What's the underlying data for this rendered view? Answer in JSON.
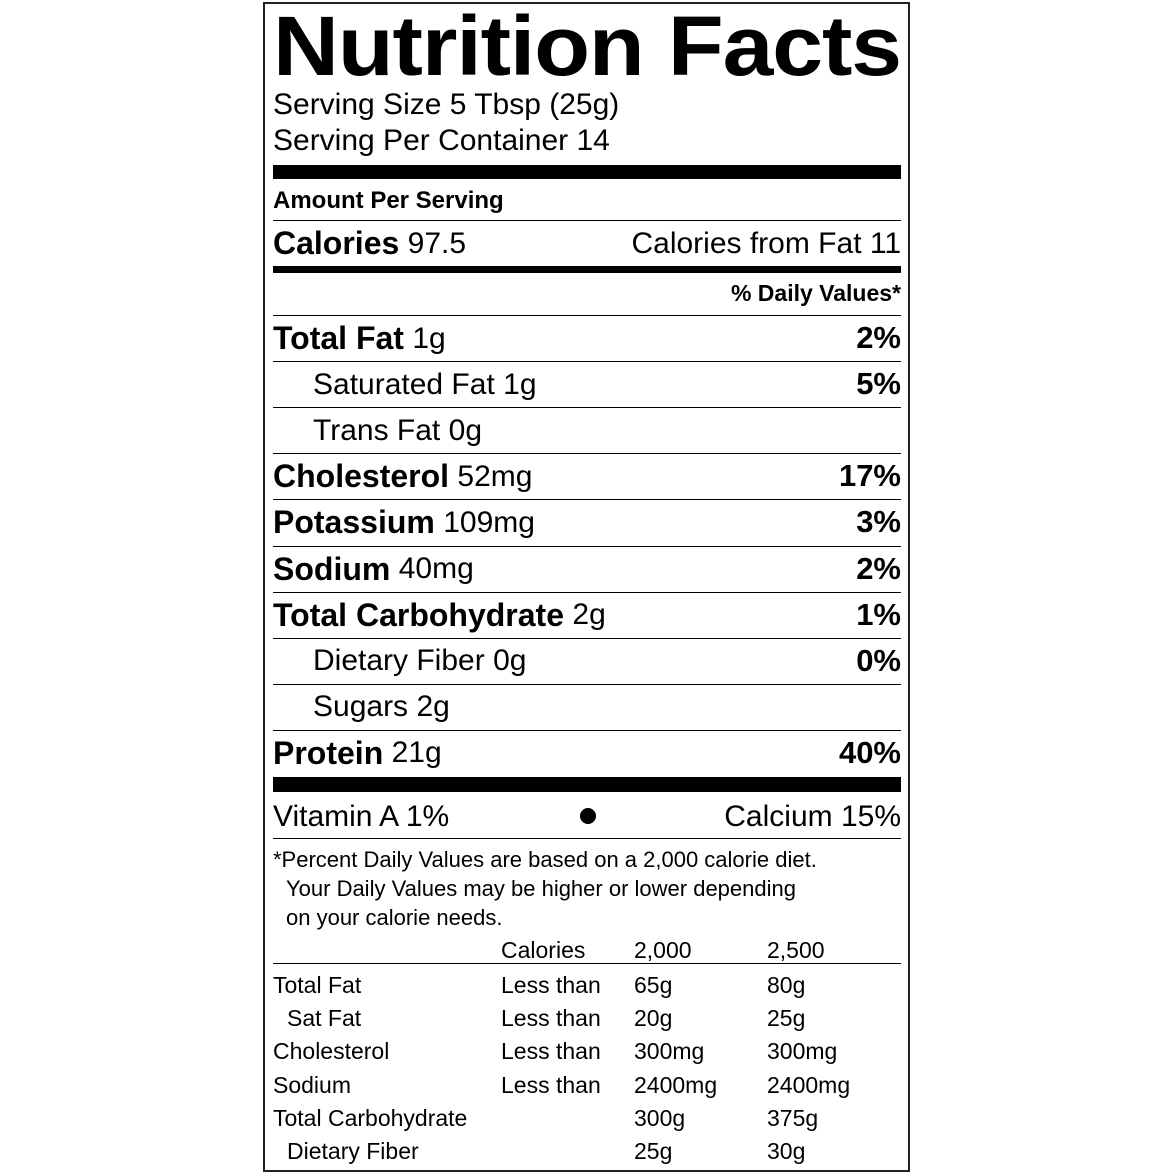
{
  "label": {
    "title": "Nutrition Facts",
    "serving_size": "Serving Size 5 Tbsp (25g)",
    "servings_per_container": "Serving Per Container 14",
    "amount_header": "Amount Per Serving",
    "calories": {
      "label": "Calories",
      "value": "97.5",
      "from_fat": "Calories from Fat 11"
    },
    "dv_header": "% Daily Values*",
    "nutrients": [
      {
        "name": "Total Fat",
        "amount": "1g",
        "dv": "2%",
        "sub": [
          {
            "name": "Saturated Fat",
            "amount": "1g",
            "dv": "5%"
          },
          {
            "name": "Trans Fat",
            "amount": "0g"
          }
        ]
      },
      {
        "name": "Cholesterol",
        "amount": "52mg",
        "dv": "17%"
      },
      {
        "name": "Potassium",
        "amount": "109mg",
        "dv": "3%"
      },
      {
        "name": "Sodium",
        "amount": "40mg",
        "dv": "2%"
      },
      {
        "name": "Total Carbohydrate",
        "amount": "2g",
        "dv": "1%",
        "sub": [
          {
            "name": "Dietary Fiber",
            "amount": "0g",
            "dv": "0%"
          },
          {
            "name": "Sugars",
            "amount": "2g"
          }
        ]
      },
      {
        "name": "Protein",
        "amount": "21g",
        "dv": "40%"
      }
    ],
    "vitamins": [
      "Vitamin A 1%",
      "Calcium 15%"
    ],
    "footnote": [
      "*Percent Daily Values are based on a 2,000 calorie diet.",
      "Your Daily Values may be higher or lower depending",
      "on your calorie needs."
    ],
    "table": {
      "header": [
        "Calories",
        "2,000",
        "2,500"
      ],
      "rows": [
        {
          "name": "Total Fat",
          "qualifier": "Less than",
          "values": [
            "65g",
            "80g"
          ],
          "sub": [
            {
              "name": "Sat Fat",
              "qualifier": "Less than",
              "values": [
                "20g",
                "25g"
              ]
            }
          ]
        },
        {
          "name": "Cholesterol",
          "qualifier": "Less than",
          "values": [
            "300mg",
            "300mg"
          ]
        },
        {
          "name": "Sodium",
          "qualifier": "Less than",
          "values": [
            "2400mg",
            "2400mg"
          ]
        },
        {
          "name": "Total Carbohydrate",
          "values": [
            "300g",
            "375g"
          ],
          "sub": [
            {
              "name": "Dietary Fiber",
              "values": [
                "25g",
                "30g"
              ]
            }
          ]
        }
      ]
    }
  }
}
